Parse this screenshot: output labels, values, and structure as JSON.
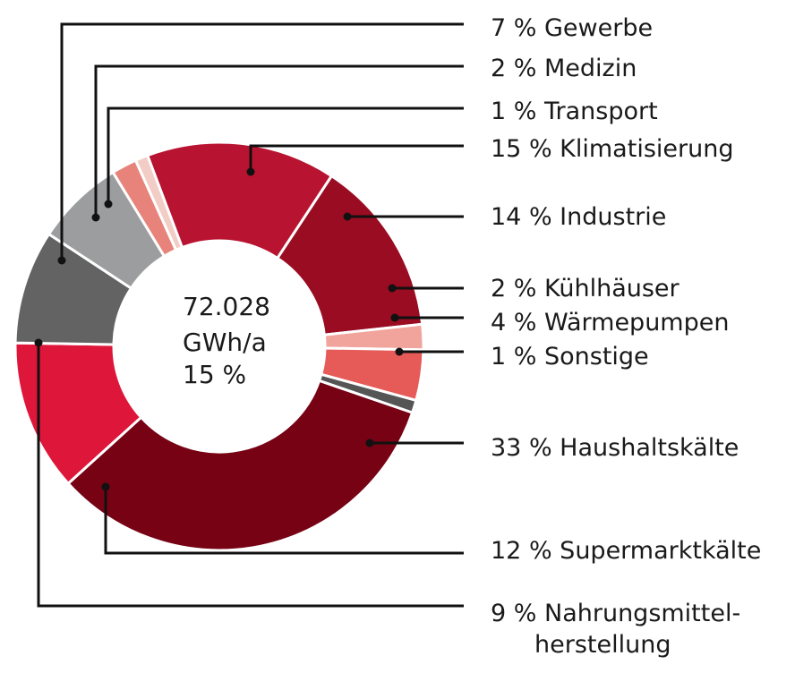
{
  "chart_data": {
    "type": "pie",
    "style": "donut",
    "center": {
      "line1": "72.028",
      "line2": "GWh/a",
      "line3": "15 %"
    },
    "slices": [
      {
        "label": "Klimatisierung",
        "value": 15,
        "text": "15 % Klimatisierung",
        "color": "#b81330"
      },
      {
        "label": "Industrie",
        "value": 14,
        "text": "14 % Industrie",
        "color": "#9a0c22"
      },
      {
        "label": "Kühlhäuser",
        "value": 2,
        "text": "2 % Kühlhäuser",
        "color": "#f0a49c"
      },
      {
        "label": "Wärmepumpen",
        "value": 4,
        "text": "4 % Wärmepumpen",
        "color": "#e65a58"
      },
      {
        "label": "Sonstige",
        "value": 1,
        "text": "1 % Sonstige",
        "color": "#555555"
      },
      {
        "label": "Haushaltskälte",
        "value": 33,
        "text": "33 % Haushaltskälte",
        "color": "#760214"
      },
      {
        "label": "Supermarktkälte",
        "value": 12,
        "text": "12 % Supermarktkälte",
        "color": "#dd163a"
      },
      {
        "label": "Nahrungsmittelherstellung",
        "value": 9,
        "text": "9 % Nahrungsmittel-",
        "text2": "herstellung",
        "color": "#636363"
      },
      {
        "label": "Gewerbe",
        "value": 7,
        "text": "7 % Gewerbe",
        "color": "#9b9d9e"
      },
      {
        "label": "Medizin",
        "value": 2,
        "text": "2 % Medizin",
        "color": "#e7837a"
      },
      {
        "label": "Transport",
        "value": 1,
        "text": "1 % Transport",
        "color": "#f2cdc5"
      }
    ]
  }
}
